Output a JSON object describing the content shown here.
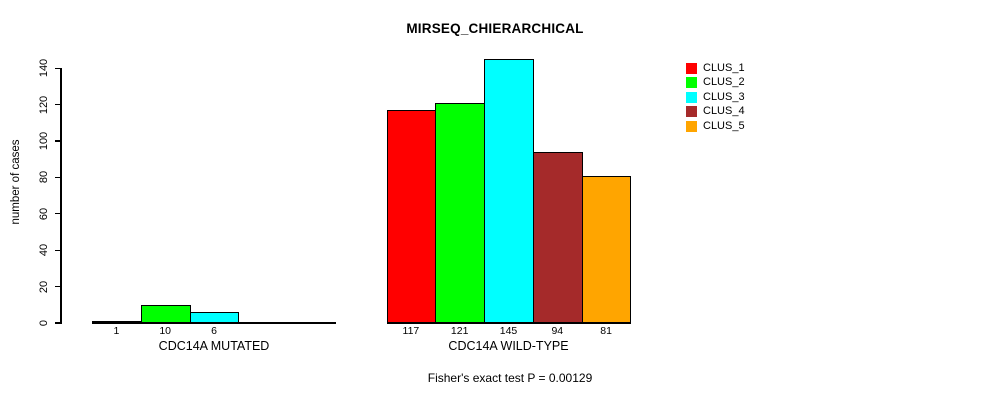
{
  "figure": {
    "title": "MIRSEQ_CHIERARCHICAL",
    "caption": "Fisher's exact test P = 0.00129"
  },
  "chart_data": {
    "type": "bar",
    "title": "MIRSEQ_CHIERARCHICAL",
    "ylabel": "number of cases",
    "xlabel": "",
    "ylim": [
      0,
      145
    ],
    "yticks": [
      0,
      20,
      40,
      60,
      80,
      100,
      120,
      140
    ],
    "grid": false,
    "legend_position": "right",
    "legend": [
      {
        "label": "CLUS_1",
        "color": "#ff0000"
      },
      {
        "label": "CLUS_2",
        "color": "#00ff00"
      },
      {
        "label": "CLUS_3",
        "color": "#00ffff"
      },
      {
        "label": "CLUS_4",
        "color": "#a52a2a"
      },
      {
        "label": "CLUS_5",
        "color": "#ffa500"
      }
    ],
    "series_colors": [
      "#ff0000",
      "#00ff00",
      "#00ffff",
      "#a52a2a",
      "#ffa500"
    ],
    "groups": [
      {
        "label": "CDC14A MUTATED",
        "values": [
          1,
          10,
          6,
          0,
          0
        ],
        "bar_labels": [
          "1",
          "10",
          "6",
          "",
          ""
        ]
      },
      {
        "label": "CDC14A WILD-TYPE",
        "values": [
          117,
          121,
          145,
          94,
          81
        ],
        "bar_labels": [
          "117",
          "121",
          "145",
          "94",
          "81"
        ]
      }
    ],
    "caption": "Fisher's exact test P = 0.00129"
  }
}
